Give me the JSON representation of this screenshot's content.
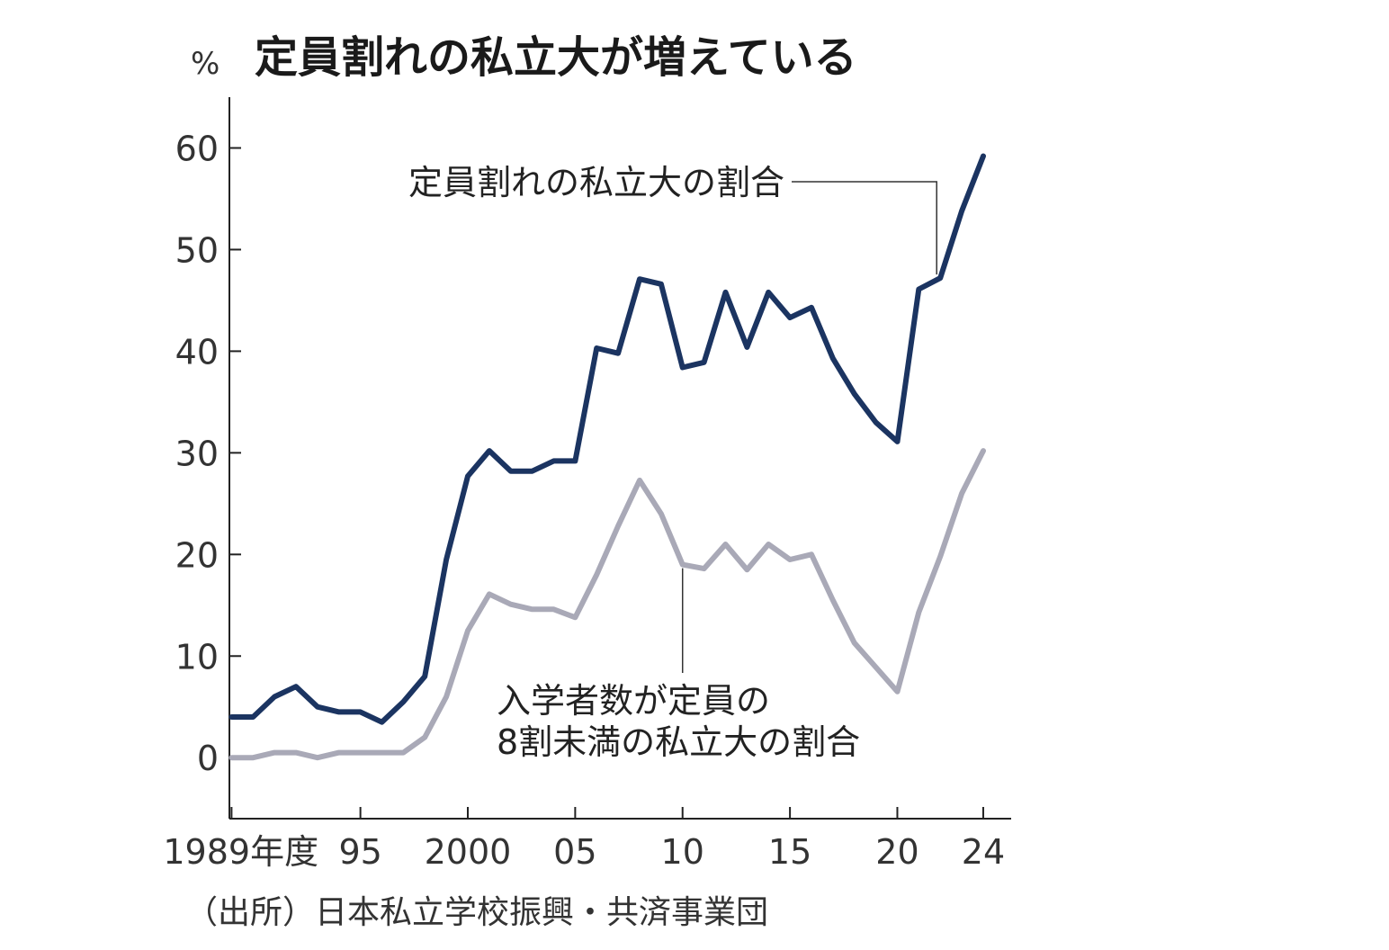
{
  "chart_data": {
    "type": "line",
    "title": "定員割れの私立大が増えている",
    "unit": "%",
    "source": "（出所）日本私立学校振興・共済事業団",
    "ylim": [
      -6,
      65
    ],
    "y_ticks": [
      0,
      10,
      20,
      30,
      40,
      50,
      60
    ],
    "x_range": [
      1988.9,
      2025.3
    ],
    "x_ticks": [
      {
        "year": 1989,
        "label": "1989年度"
      },
      {
        "year": 1995,
        "label": "95"
      },
      {
        "year": 2000,
        "label": "2000"
      },
      {
        "year": 2005,
        "label": "05"
      },
      {
        "year": 2010,
        "label": "10"
      },
      {
        "year": 2015,
        "label": "15"
      },
      {
        "year": 2020,
        "label": "20"
      },
      {
        "year": 2024,
        "label": "24"
      }
    ],
    "x": [
      1989,
      1990,
      1991,
      1992,
      1993,
      1994,
      1995,
      1996,
      1997,
      1998,
      1999,
      2000,
      2001,
      2002,
      2003,
      2004,
      2005,
      2006,
      2007,
      2008,
      2009,
      2010,
      2011,
      2012,
      2013,
      2014,
      2015,
      2016,
      2017,
      2018,
      2019,
      2020,
      2021,
      2022,
      2023,
      2024
    ],
    "series": [
      {
        "name": "定員割れの私立大の割合",
        "color": "#1b3461",
        "values": [
          4,
          4,
          6,
          7,
          5,
          4.5,
          4.5,
          3.5,
          5.5,
          8,
          19.5,
          27.7,
          30.2,
          28.2,
          28.2,
          29.2,
          29.2,
          40.3,
          39.8,
          47.1,
          46.6,
          38.4,
          38.9,
          45.8,
          40.4,
          45.8,
          43.3,
          44.3,
          39.3,
          35.8,
          33,
          31.1,
          46.1,
          47.2,
          53.8,
          59.2
        ]
      },
      {
        "name": "入学者数が定員の\n8割未満の私立大の割合",
        "color": "#a9a9b7",
        "values": [
          0,
          0,
          0.5,
          0.5,
          0,
          0.5,
          0.5,
          0.5,
          0.5,
          2,
          6,
          12.5,
          16.1,
          15.1,
          14.6,
          14.6,
          13.8,
          18,
          22.8,
          27.3,
          24,
          19,
          18.6,
          21,
          18.5,
          21,
          19.5,
          20,
          15.5,
          11.3,
          8.9,
          6.5,
          14.3,
          19.8,
          26,
          30.2
        ]
      }
    ],
    "annotations": [
      {
        "series": 0,
        "lines": [
          "定員割れの私立大の割合"
        ],
        "point_year": 2022
      },
      {
        "series": 1,
        "lines": [
          "入学者数が定員の",
          "8割未満の私立大の割合"
        ],
        "point_year": 2010
      }
    ]
  }
}
